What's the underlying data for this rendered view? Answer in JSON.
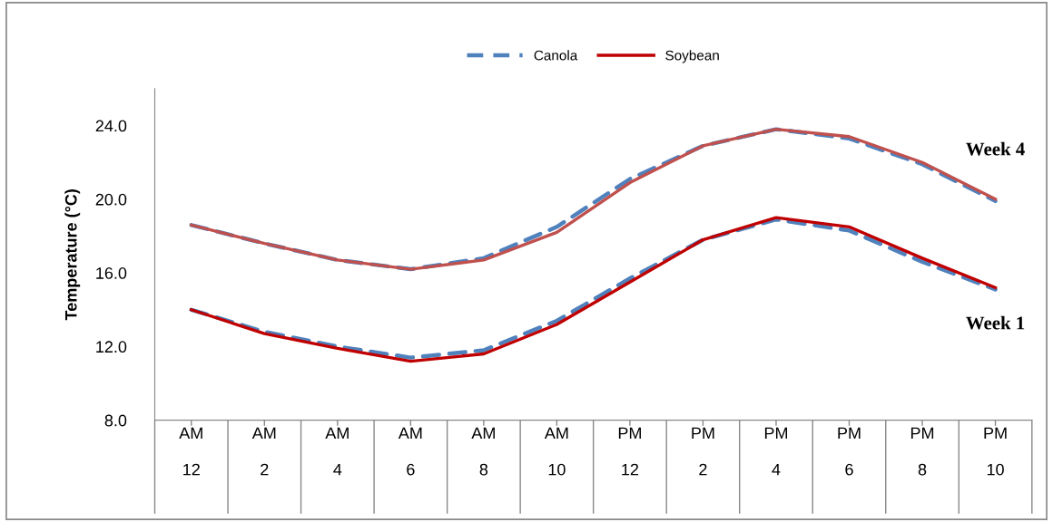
{
  "chart_data": {
    "type": "line",
    "ylabel": "Temperature (°C)",
    "categories": [
      "AM\n12",
      "AM\n2",
      "AM\n4",
      "AM\n6",
      "AM\n8",
      "AM\n10",
      "PM\n12",
      "PM\n2",
      "PM\n4",
      "PM\n6",
      "PM\n8",
      "PM\n10"
    ],
    "series": [
      {
        "name": "Canola",
        "color": "#4f81bd",
        "line_style": "dashed",
        "values": [
          14.0,
          12.8,
          12.0,
          11.4,
          11.8,
          13.4,
          15.7,
          17.8,
          18.9,
          18.3,
          16.6,
          15.1
        ]
      },
      {
        "name": "Soybean",
        "color": "#c00000",
        "line_style": "solid",
        "values": [
          14.0,
          12.7,
          11.9,
          11.2,
          11.6,
          13.2,
          15.5,
          17.8,
          19.0,
          18.5,
          16.8,
          15.2
        ]
      },
      {
        "color": "#4f81bd",
        "line_style": "dashed",
        "values": [
          18.6,
          17.6,
          16.7,
          16.2,
          16.8,
          18.5,
          21.1,
          22.9,
          23.8,
          23.3,
          21.9,
          19.9
        ]
      },
      {
        "color": "#c0504d",
        "line_style": "solid",
        "values": [
          18.6,
          17.6,
          16.7,
          16.2,
          16.7,
          18.2,
          20.9,
          22.9,
          23.8,
          23.4,
          22.0,
          20.0
        ]
      }
    ],
    "ylim": [
      8,
      26
    ],
    "yticks": [
      {
        "value": 8,
        "label": "8.0"
      },
      {
        "value": 12,
        "label": "12.0"
      },
      {
        "value": 16,
        "label": "16.0"
      },
      {
        "value": 20,
        "label": "20.0"
      },
      {
        "value": 24,
        "label": "24.0"
      }
    ],
    "annotations": [
      {
        "text": "Week 4",
        "x": "PM\n10",
        "y": 19.9
      },
      {
        "text": "Week 1",
        "x": "PM\n10",
        "y": 15.1
      }
    ],
    "grid": false,
    "legend": "top",
    "marker": "none"
  }
}
